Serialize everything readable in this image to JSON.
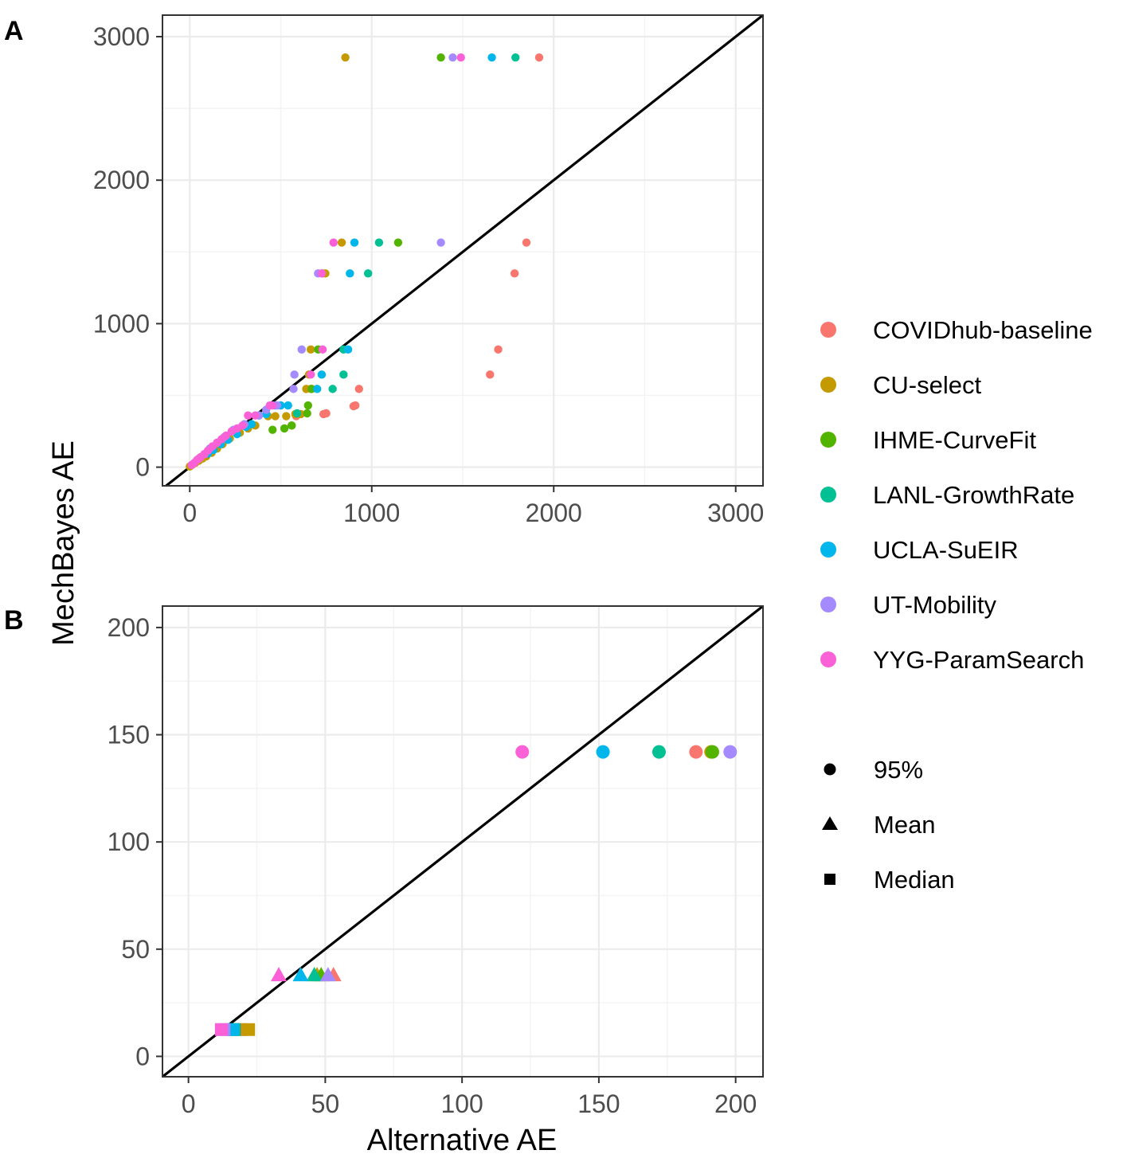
{
  "chart_data": [
    {
      "type": "scatter",
      "panel_label": "A",
      "xlabel": "",
      "ylabel": "MechBayes AE",
      "xlim": [
        -150,
        3150
      ],
      "ylim": [
        -130,
        3150
      ],
      "xticks": [
        "0",
        "1000",
        "2000",
        "3000"
      ],
      "yticks": [
        "0",
        "1000",
        "2000",
        "3000"
      ],
      "xtick_values": [
        0,
        1000,
        2000,
        3000
      ],
      "ytick_values": [
        0,
        1000,
        2000,
        3000
      ],
      "grid": true,
      "reference_line": "y = x",
      "series": [
        {
          "name": "COVIDhub-baseline",
          "points": [
            [
              1920,
              2855
            ],
            [
              1850,
              1565
            ],
            [
              1785,
              1350
            ],
            [
              1695,
              820
            ],
            [
              1650,
              645
            ],
            [
              930,
              545
            ],
            [
              910,
              430
            ],
            [
              900,
              425
            ],
            [
              750,
              375
            ],
            [
              735,
              370
            ],
            [
              585,
              355
            ],
            [
              560,
              290
            ]
          ]
        },
        {
          "name": "CU-select",
          "points": [
            [
              855,
              2855
            ],
            [
              835,
              1565
            ],
            [
              745,
              1350
            ],
            [
              730,
              1350
            ],
            [
              665,
              820
            ],
            [
              655,
              645
            ],
            [
              665,
              545
            ],
            [
              640,
              545
            ],
            [
              610,
              370
            ],
            [
              580,
              370
            ],
            [
              530,
              355
            ],
            [
              470,
              355
            ],
            [
              430,
              355
            ],
            [
              360,
              290
            ],
            [
              320,
              270
            ],
            [
              275,
              240
            ],
            [
              220,
              200
            ],
            [
              180,
              160
            ],
            [
              150,
              130
            ],
            [
              120,
              100
            ],
            [
              90,
              75
            ],
            [
              70,
              60
            ],
            [
              50,
              45
            ],
            [
              30,
              30
            ],
            [
              12,
              15
            ],
            [
              0,
              5
            ]
          ]
        },
        {
          "name": "IHME-CurveFit",
          "points": [
            [
              1380,
              2855
            ],
            [
              1145,
              1565
            ],
            [
              705,
              820
            ],
            [
              670,
              545
            ],
            [
              650,
              430
            ],
            [
              645,
              375
            ],
            [
              560,
              290
            ],
            [
              520,
              270
            ],
            [
              455,
              260
            ]
          ]
        },
        {
          "name": "LANL-GrowthRate",
          "points": [
            [
              1790,
              2855
            ],
            [
              1040,
              1565
            ],
            [
              980,
              1350
            ],
            [
              845,
              820
            ],
            [
              845,
              645
            ],
            [
              785,
              545
            ],
            [
              590,
              375
            ]
          ]
        },
        {
          "name": "UCLA-SuEIR",
          "points": [
            [
              1660,
              2855
            ],
            [
              905,
              1565
            ],
            [
              880,
              1350
            ],
            [
              870,
              820
            ],
            [
              725,
              645
            ],
            [
              700,
              545
            ],
            [
              540,
              430
            ],
            [
              500,
              430
            ],
            [
              470,
              430
            ],
            [
              420,
              370
            ],
            [
              380,
              360
            ],
            [
              340,
              300
            ],
            [
              310,
              280
            ],
            [
              260,
              230
            ],
            [
              210,
              190
            ],
            [
              170,
              160
            ],
            [
              130,
              120
            ],
            [
              100,
              95
            ]
          ]
        },
        {
          "name": "UT-Mobility",
          "points": [
            [
              1445,
              2855
            ],
            [
              1380,
              1565
            ],
            [
              705,
              1350
            ],
            [
              615,
              820
            ],
            [
              575,
              645
            ],
            [
              570,
              545
            ],
            [
              480,
              430
            ],
            [
              420,
              400
            ],
            [
              380,
              360
            ],
            [
              300,
              300
            ],
            [
              240,
              260
            ],
            [
              190,
              210
            ],
            [
              150,
              170
            ],
            [
              110,
              130
            ],
            [
              80,
              90
            ],
            [
              50,
              60
            ]
          ]
        },
        {
          "name": "YYG-ParamSearch",
          "points": [
            [
              1490,
              2855
            ],
            [
              790,
              1565
            ],
            [
              725,
              1350
            ],
            [
              730,
              820
            ],
            [
              665,
              645
            ],
            [
              455,
              430
            ],
            [
              440,
              430
            ],
            [
              360,
              360
            ],
            [
              320,
              360
            ],
            [
              290,
              290
            ],
            [
              260,
              270
            ],
            [
              230,
              250
            ],
            [
              200,
              220
            ],
            [
              175,
              195
            ],
            [
              150,
              170
            ],
            [
              125,
              145
            ],
            [
              100,
              115
            ],
            [
              80,
              90
            ],
            [
              60,
              70
            ],
            [
              40,
              50
            ],
            [
              25,
              30
            ],
            [
              10,
              15
            ]
          ]
        }
      ]
    },
    {
      "type": "scatter",
      "panel_label": "B",
      "xlabel": "Alternative AE",
      "ylabel": "MechBayes AE",
      "xlim": [
        -9.5,
        210
      ],
      "ylim": [
        -9.5,
        210
      ],
      "xticks": [
        "0",
        "50",
        "100",
        "150",
        "200"
      ],
      "yticks": [
        "0",
        "50",
        "100",
        "150",
        "200"
      ],
      "xtick_values": [
        0,
        50,
        100,
        150,
        200
      ],
      "ytick_values": [
        0,
        50,
        100,
        150,
        200
      ],
      "grid": true,
      "reference_line": "y = x",
      "series": [
        {
          "name": "COVIDhub-baseline",
          "points": [
            {
              "x": 185.5,
              "y": 142,
              "stat": "95%"
            },
            {
              "x": 53,
              "y": 38,
              "stat": "Mean"
            },
            {
              "x": 19,
              "y": 12.5,
              "stat": "Median"
            }
          ]
        },
        {
          "name": "CU-select",
          "points": [
            {
              "x": 191,
              "y": 142,
              "stat": "95%"
            },
            {
              "x": 47,
              "y": 38,
              "stat": "Mean"
            },
            {
              "x": 22,
              "y": 12.5,
              "stat": "Median"
            }
          ]
        },
        {
          "name": "IHME-CurveFit",
          "points": [
            {
              "x": 191.5,
              "y": 142,
              "stat": "95%"
            },
            {
              "x": 48.5,
              "y": 38,
              "stat": "Mean"
            },
            {
              "x": 17,
              "y": 12.5,
              "stat": "Median"
            }
          ]
        },
        {
          "name": "LANL-GrowthRate",
          "points": [
            {
              "x": 172,
              "y": 142,
              "stat": "95%"
            },
            {
              "x": 46,
              "y": 38,
              "stat": "Mean"
            },
            {
              "x": 16,
              "y": 12.5,
              "stat": "Median"
            }
          ]
        },
        {
          "name": "UCLA-SuEIR",
          "points": [
            {
              "x": 151.5,
              "y": 142,
              "stat": "95%"
            },
            {
              "x": 41,
              "y": 38,
              "stat": "Mean"
            },
            {
              "x": 16.5,
              "y": 12.5,
              "stat": "Median"
            }
          ]
        },
        {
          "name": "UT-Mobility",
          "points": [
            {
              "x": 198,
              "y": 142,
              "stat": "95%"
            },
            {
              "x": 51,
              "y": 38,
              "stat": "Mean"
            },
            {
              "x": 13,
              "y": 12.5,
              "stat": "Median"
            }
          ]
        },
        {
          "name": "YYG-ParamSearch",
          "points": [
            {
              "x": 122,
              "y": 142,
              "stat": "95%"
            },
            {
              "x": 33,
              "y": 38,
              "stat": "Mean"
            },
            {
              "x": 12,
              "y": 12.5,
              "stat": "Median"
            }
          ]
        }
      ]
    }
  ],
  "legend": {
    "color_entries": [
      {
        "label": "COVIDhub-baseline",
        "color": "#F8766D"
      },
      {
        "label": "CU-select",
        "color": "#C49A00"
      },
      {
        "label": "IHME-CurveFit",
        "color": "#53B400"
      },
      {
        "label": "LANL-GrowthRate",
        "color": "#00C094"
      },
      {
        "label": "UCLA-SuEIR",
        "color": "#00B6EB"
      },
      {
        "label": "UT-Mobility",
        "color": "#A58AFF"
      },
      {
        "label": "YYG-ParamSearch",
        "color": "#FB61D7"
      }
    ],
    "shape_entries": [
      {
        "label": "95%",
        "shape": "circle"
      },
      {
        "label": "Mean",
        "shape": "triangle"
      },
      {
        "label": "Median",
        "shape": "square"
      }
    ]
  }
}
